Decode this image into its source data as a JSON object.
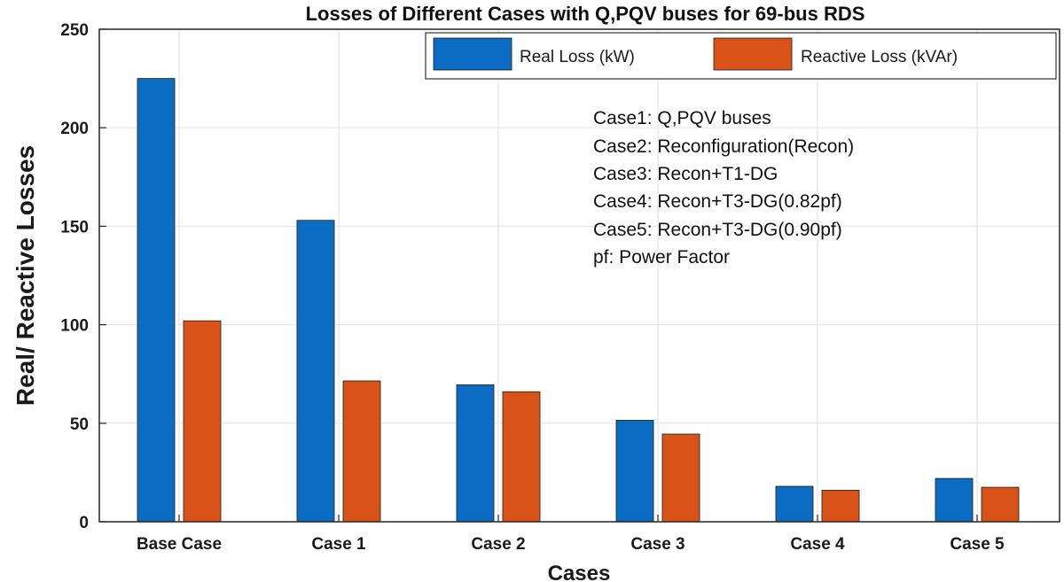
{
  "chart_data": {
    "type": "bar",
    "title": "Losses of Different Cases with Q,PQV buses for 69-bus RDS",
    "xlabel": "Cases",
    "ylabel": "Real/ Reactive Losses",
    "categories": [
      "Base Case",
      "Case 1",
      "Case 2",
      "Case 3",
      "Case 4",
      "Case 5"
    ],
    "series": [
      {
        "name": "Real Loss (kW)",
        "color": "#0a6cc2",
        "values": [
          225,
          153,
          69.5,
          51.5,
          18,
          22
        ]
      },
      {
        "name": "Reactive Loss (kVAr)",
        "color": "#d95319",
        "values": [
          102,
          71.5,
          66,
          44.5,
          16,
          17.5
        ]
      }
    ],
    "ylim": [
      0,
      250
    ],
    "yticks": [
      "0",
      "50",
      "100",
      "150",
      "200",
      "250"
    ],
    "grid": true,
    "legend_position": "top-right",
    "annotations": [
      "Case1: Q,PQV buses",
      "Case2: Reconfiguration(Recon)",
      "Case3: Recon+T1-DG",
      "Case4: Recon+T3-DG(0.82pf)",
      "Case5: Recon+T3-DG(0.90pf)",
      "pf: Power Factor"
    ]
  }
}
